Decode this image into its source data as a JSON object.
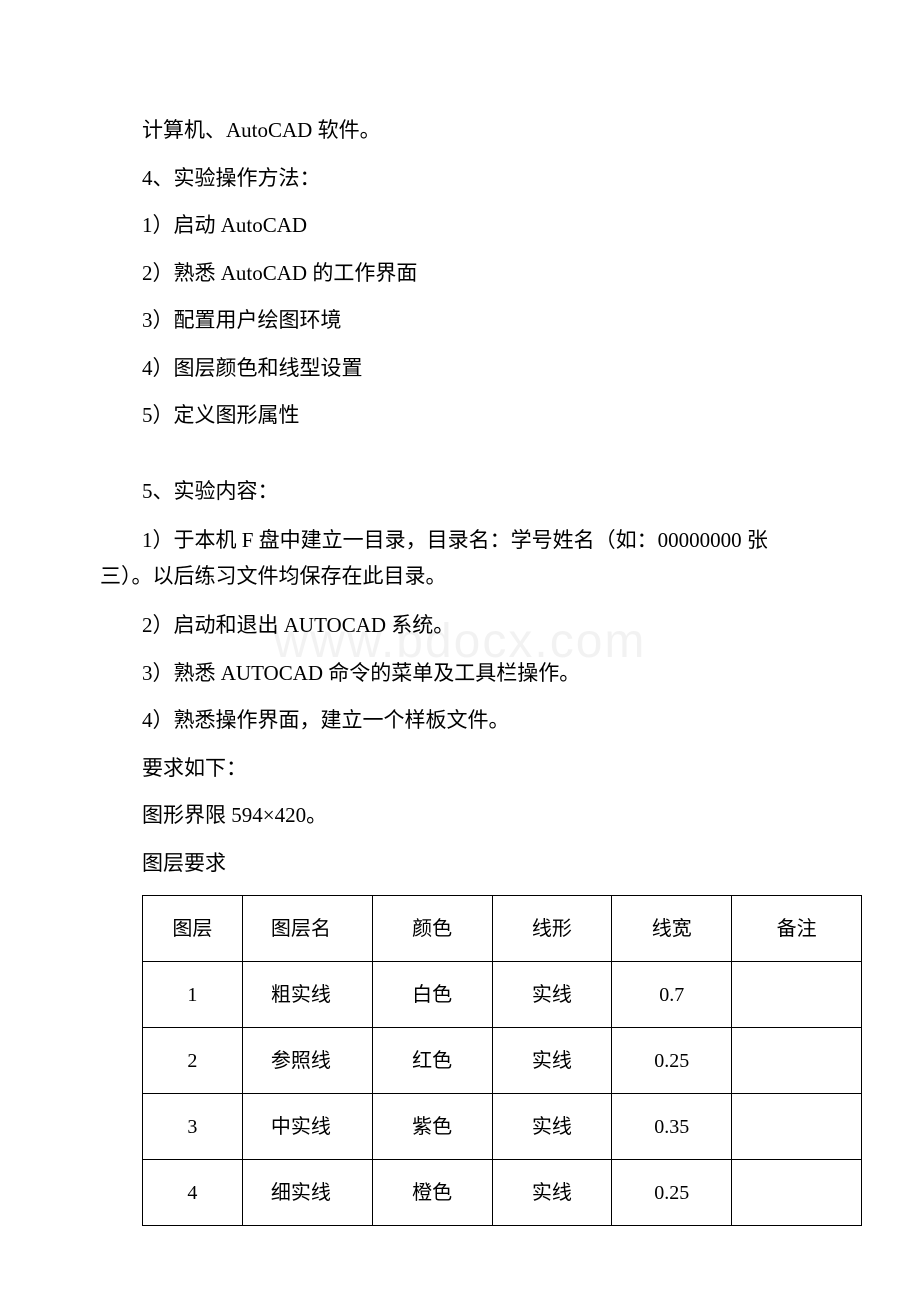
{
  "p1": "计算机、AutoCAD 软件。",
  "p2": "4、实验操作方法：",
  "p3": "1）启动 AutoCAD",
  "p4": "2）熟悉 AutoCAD 的工作界面",
  "p5": "3）配置用户绘图环境",
  "p6": "4）图层颜色和线型设置",
  "p7": "5）定义图形属性",
  "p8": "5、实验内容：",
  "p9": "1）于本机 F 盘中建立一目录，目录名：学号姓名（如：00000000 张三）。以后练习文件均保存在此目录。",
  "p10": "2）启动和退出 AUTOCAD 系统。",
  "p11": "3）熟悉 AUTOCAD 命令的菜单及工具栏操作。",
  "p12": "4）熟悉操作界面，建立一个样板文件。",
  "p13": "要求如下：",
  "p14": "图形界限 594×420。",
  "p15": "图层要求",
  "table": {
    "header": {
      "c1": "图层",
      "c2": "图层名",
      "c3": "颜色",
      "c4": "线形",
      "c5": "线宽",
      "c6": "备注"
    },
    "rows": [
      {
        "c1": "1",
        "c2": "粗实线",
        "c3": "白色",
        "c4": "实线",
        "c5": "0.7",
        "c6": ""
      },
      {
        "c1": "2",
        "c2": "参照线",
        "c3": "红色",
        "c4": "实线",
        "c5": "0.25",
        "c6": ""
      },
      {
        "c1": "3",
        "c2": "中实线",
        "c3": "紫色",
        "c4": "实线",
        "c5": "0.35",
        "c6": ""
      },
      {
        "c1": "4",
        "c2": "细实线",
        "c3": "橙色",
        "c4": "实线",
        "c5": "0.25",
        "c6": ""
      }
    ]
  },
  "watermark": "www.bdocx.com"
}
